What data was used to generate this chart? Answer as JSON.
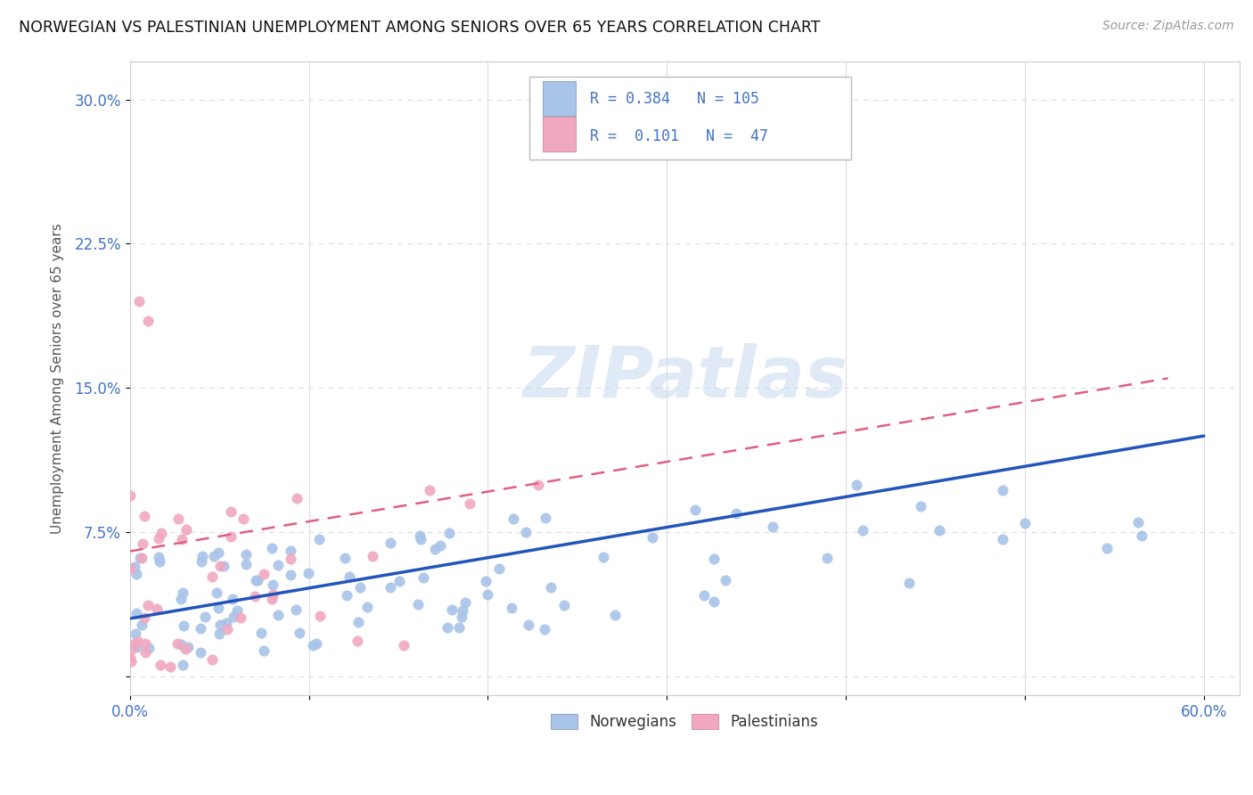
{
  "title": "NORWEGIAN VS PALESTINIAN UNEMPLOYMENT AMONG SENIORS OVER 65 YEARS CORRELATION CHART",
  "source": "Source: ZipAtlas.com",
  "ylabel": "Unemployment Among Seniors over 65 years",
  "xlim": [
    0.0,
    0.62
  ],
  "ylim": [
    -0.01,
    0.32
  ],
  "yticks": [
    0.0,
    0.075,
    0.15,
    0.225,
    0.3
  ],
  "yticklabels": [
    "",
    "7.5%",
    "15.0%",
    "22.5%",
    "30.0%"
  ],
  "xticks": [
    0.0,
    0.1,
    0.2,
    0.3,
    0.4,
    0.5,
    0.6
  ],
  "xticklabels": [
    "0.0%",
    "",
    "",
    "",
    "",
    "",
    "60.0%"
  ],
  "norwegian_color": "#a8c4e8",
  "palestinian_color": "#f0a8c0",
  "norwegian_line_color": "#2255bb",
  "palestinian_line_color": "#e06080",
  "R_norwegian": 0.384,
  "N_norwegian": 105,
  "R_palestinian": 0.101,
  "N_palestinian": 47,
  "watermark": "ZIPatlas",
  "grid_color": "#dddddd",
  "bg_color": "#ffffff",
  "tick_color": "#4472c4",
  "label_color": "#555555"
}
